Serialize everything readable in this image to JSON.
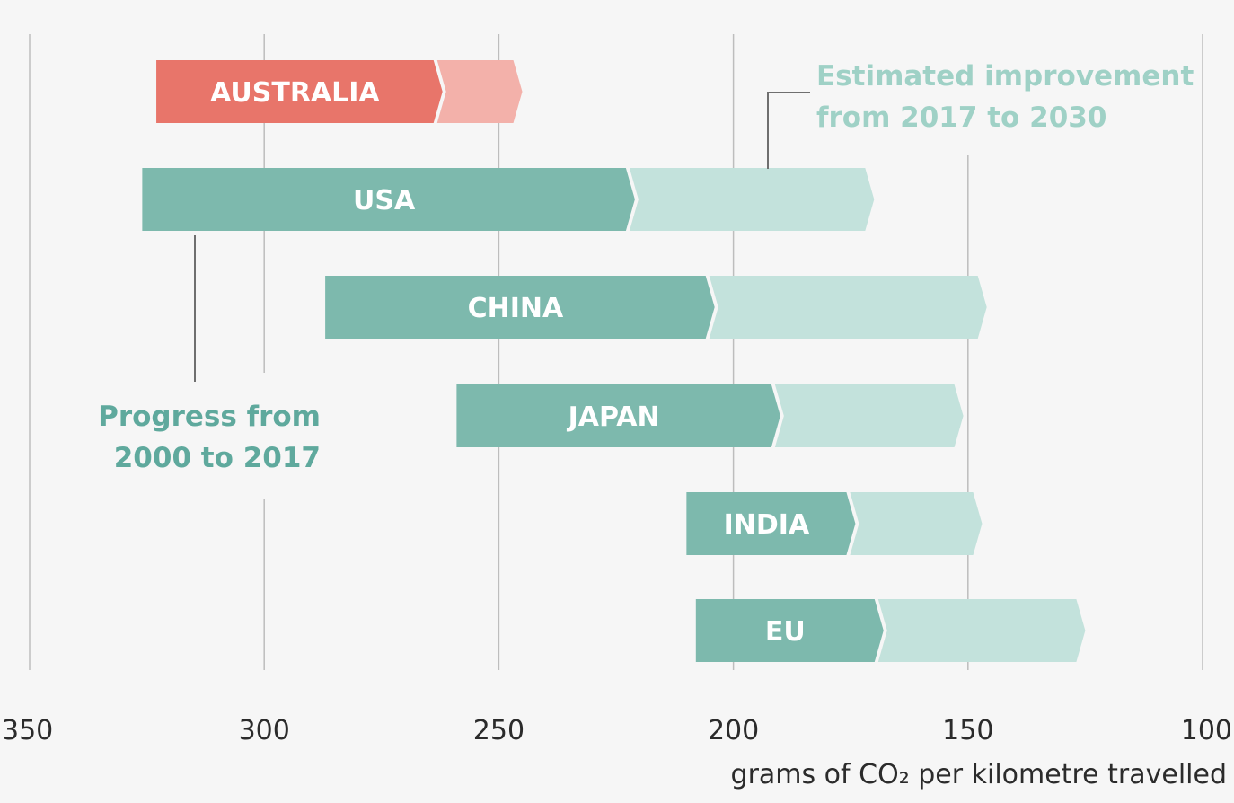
{
  "chart_data": {
    "type": "bar",
    "subtype": "horizontal-range-arrow",
    "x_axis": {
      "ticks": [
        350,
        300,
        250,
        200,
        150,
        100
      ],
      "tick_labels": [
        "350",
        "300",
        "250",
        "200",
        "150",
        "100"
      ],
      "label": "grams of CO₂ per kilometre travelled",
      "reversed": true,
      "xlim": [
        350,
        100
      ]
    },
    "grid": true,
    "series": [
      {
        "name": "Progress from 2000 to 2017"
      },
      {
        "name": "Estimated improvement from 2017 to 2030"
      }
    ],
    "categories": [
      "AUSTRALIA",
      "USA",
      "CHINA",
      "JAPAN",
      "INDIA",
      "EU"
    ],
    "values": [
      {
        "category": "AUSTRALIA",
        "value_2000": 323,
        "value_2017": 262,
        "value_2030": 245
      },
      {
        "category": "USA",
        "value_2000": 326,
        "value_2017": 221,
        "value_2030": 170
      },
      {
        "category": "CHINA",
        "value_2000": 287,
        "value_2017": 204,
        "value_2030": 146
      },
      {
        "category": "JAPAN",
        "value_2000": 259,
        "value_2017": 190,
        "value_2030": 151
      },
      {
        "category": "INDIA",
        "value_2000": 210,
        "value_2017": 174,
        "value_2030": 147
      },
      {
        "category": "EU",
        "value_2000": 208,
        "value_2017": 168,
        "value_2030": 125
      }
    ],
    "highlight": "AUSTRALIA",
    "annotations": {
      "progress": [
        "Progress from",
        "2000 to 2017"
      ],
      "estimated": [
        "Estimated improvement",
        "from 2017 to 2030"
      ]
    },
    "colors": {
      "progress": "#7db9ad",
      "estimated": "#c3e2dc",
      "highlight_progress": "#e8756a",
      "highlight_estimated": "#f3b1aa",
      "grid": "#bdbdbd",
      "background": "#f6f6f6",
      "progress_note": "#5fa99d",
      "estimated_note": "#9fd1c6"
    }
  }
}
